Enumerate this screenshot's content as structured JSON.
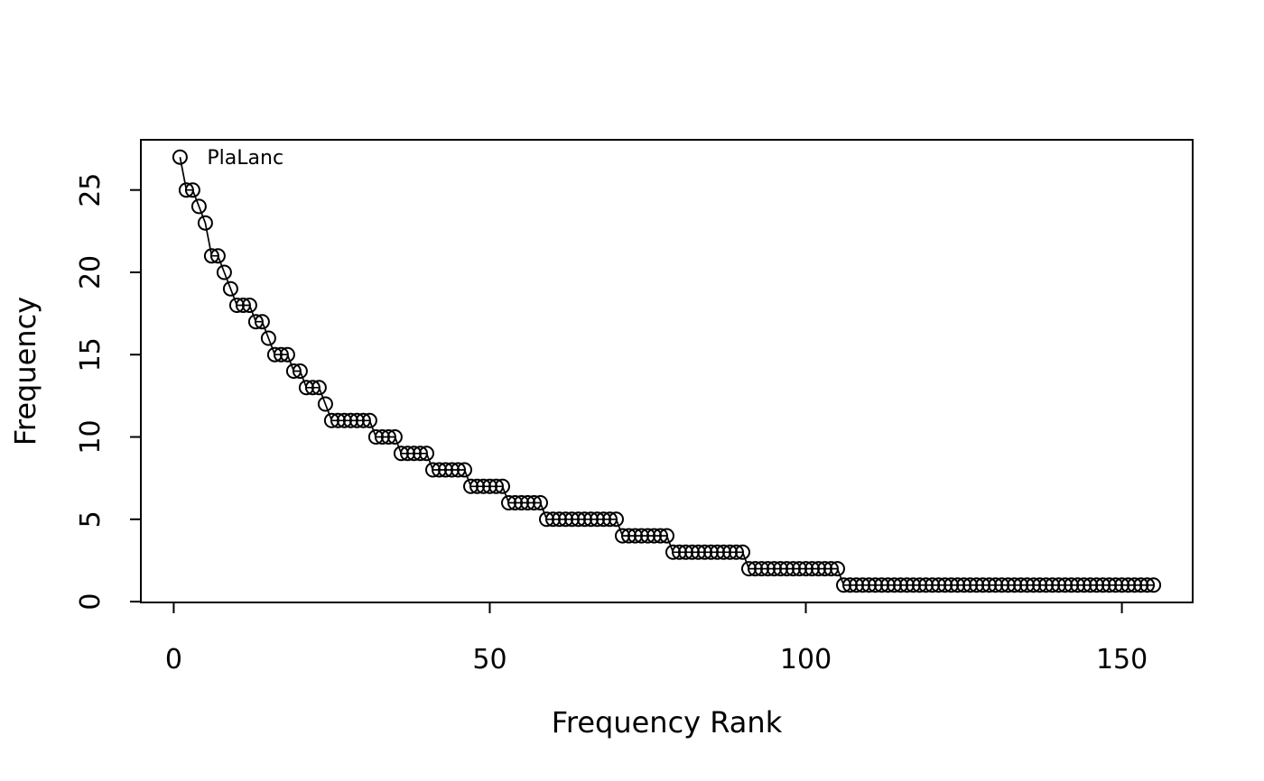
{
  "chart_data": {
    "type": "line",
    "subtype": "rank-frequency-whittaker-plot",
    "marker": "open-circle",
    "title": "",
    "xlabel": "Frequency Rank",
    "ylabel": "Frequency",
    "x_ticks": [
      0,
      50,
      100,
      150
    ],
    "y_ticks": [
      0,
      5,
      10,
      15,
      20,
      25
    ],
    "xlim": [
      -5.2,
      161.2
    ],
    "ylim": [
      -0.05,
      28.05
    ],
    "grid": false,
    "legend": false,
    "annotation": {
      "label": "PlaLanc",
      "rank": 1,
      "freq": 27
    },
    "series": [
      {
        "name": "species-frequency-by-rank",
        "total_points": 155,
        "frequency_distribution": [
          {
            "freq": 27,
            "count": 1
          },
          {
            "freq": 25,
            "count": 2
          },
          {
            "freq": 24,
            "count": 1
          },
          {
            "freq": 23,
            "count": 1
          },
          {
            "freq": 21,
            "count": 2
          },
          {
            "freq": 20,
            "count": 1
          },
          {
            "freq": 19,
            "count": 1
          },
          {
            "freq": 18,
            "count": 3
          },
          {
            "freq": 17,
            "count": 2
          },
          {
            "freq": 16,
            "count": 1
          },
          {
            "freq": 15,
            "count": 3
          },
          {
            "freq": 14,
            "count": 2
          },
          {
            "freq": 13,
            "count": 3
          },
          {
            "freq": 12,
            "count": 1
          },
          {
            "freq": 11,
            "count": 7
          },
          {
            "freq": 10,
            "count": 4
          },
          {
            "freq": 9,
            "count": 5
          },
          {
            "freq": 8,
            "count": 6
          },
          {
            "freq": 7,
            "count": 6
          },
          {
            "freq": 6,
            "count": 6
          },
          {
            "freq": 5,
            "count": 12
          },
          {
            "freq": 4,
            "count": 8
          },
          {
            "freq": 3,
            "count": 12
          },
          {
            "freq": 2,
            "count": 15
          },
          {
            "freq": 1,
            "count": 50
          }
        ]
      }
    ],
    "colors": {
      "stroke": "#000000",
      "background": "#ffffff"
    }
  }
}
